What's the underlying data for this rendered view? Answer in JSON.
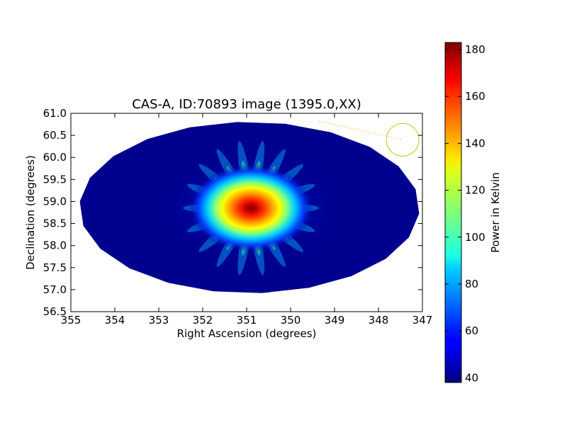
{
  "chart_data": {
    "type": "heatmap",
    "title": "CAS-A, ID:70893 image (1395.0,XX)",
    "xlabel": "Right Ascension (degrees)",
    "ylabel": "Declination (degrees)",
    "xlim": [
      355,
      347
    ],
    "ylim": [
      56.5,
      61.0
    ],
    "x_ticks": [
      355,
      354,
      353,
      352,
      351,
      350,
      349,
      348,
      347
    ],
    "x_tick_labels": [
      "355",
      "354",
      "353",
      "352",
      "351",
      "350",
      "349",
      "348",
      "347"
    ],
    "y_ticks": [
      56.5,
      57.0,
      57.5,
      58.0,
      58.5,
      59.0,
      59.5,
      60.0,
      60.5,
      61.0
    ],
    "y_tick_labels": [
      "56.5",
      "57.0",
      "57.5",
      "58.0",
      "58.5",
      "59.0",
      "59.5",
      "60.0",
      "60.5",
      "61.0"
    ],
    "source_peak": {
      "ra": 350.9,
      "dec": 58.85,
      "value": 182
    },
    "background_value": 40,
    "colormap": "jet",
    "colorbar": {
      "label": "Power in Kelvin",
      "min": 38,
      "max": 183,
      "ticks": [
        40,
        60,
        80,
        100,
        120,
        140,
        160,
        180
      ],
      "tick_labels": [
        "40",
        "60",
        "80",
        "100",
        "120",
        "140",
        "160",
        "180"
      ]
    },
    "annotation": {
      "shape": "circle",
      "color": "#c8c800",
      "center": {
        "ra": 347.45,
        "dec": 60.4
      },
      "line_from": {
        "ra": 349.35,
        "dec": 60.82
      },
      "line_to": {
        "ra": 347.45,
        "dec": 60.4
      }
    }
  }
}
